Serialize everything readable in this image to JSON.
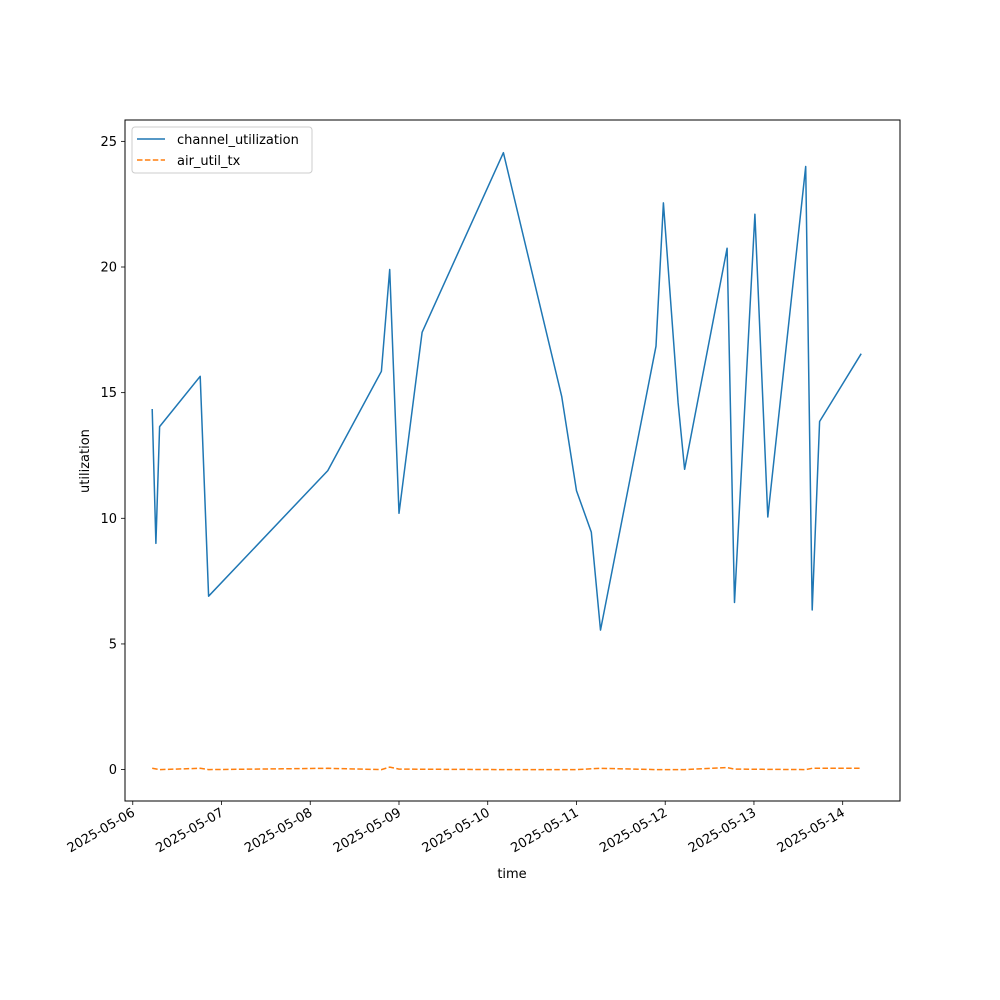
{
  "chart_data": {
    "type": "line",
    "title": "",
    "xlabel": "time",
    "ylabel": "utilization",
    "x_ticks": [
      "2025-05-06",
      "2025-05-07",
      "2025-05-08",
      "2025-05-09",
      "2025-05-10",
      "2025-05-11",
      "2025-05-12",
      "2025-05-13",
      "2025-05-14"
    ],
    "y_ticks": [
      0,
      5,
      10,
      15,
      20,
      25
    ],
    "xlim": [
      "2025-05-05T21:54",
      "2025-05-14T15:30"
    ],
    "ylim": [
      -1.25,
      25.85
    ],
    "grid": false,
    "legend_position": "upper-left",
    "series": [
      {
        "name": "channel_utilization",
        "color": "#1f77b4",
        "dash": "solid",
        "points": [
          {
            "x": "2025-05-06T05:15",
            "y": 14.35
          },
          {
            "x": "2025-05-06T06:15",
            "y": 9.0
          },
          {
            "x": "2025-05-06T07:15",
            "y": 13.65
          },
          {
            "x": "2025-05-06T18:15",
            "y": 15.65
          },
          {
            "x": "2025-05-06T20:30",
            "y": 6.9
          },
          {
            "x": "2025-05-08T04:45",
            "y": 11.9
          },
          {
            "x": "2025-05-08T19:15",
            "y": 15.85
          },
          {
            "x": "2025-05-08T21:30",
            "y": 19.9
          },
          {
            "x": "2025-05-09T00:00",
            "y": 10.2
          },
          {
            "x": "2025-05-09T06:15",
            "y": 17.4
          },
          {
            "x": "2025-05-10T04:15",
            "y": 24.55
          },
          {
            "x": "2025-05-10T20:00",
            "y": 14.85
          },
          {
            "x": "2025-05-11T00:00",
            "y": 11.1
          },
          {
            "x": "2025-05-11T04:00",
            "y": 9.45
          },
          {
            "x": "2025-05-11T06:30",
            "y": 5.55
          },
          {
            "x": "2025-05-11T21:30",
            "y": 16.85
          },
          {
            "x": "2025-05-11T23:30",
            "y": 22.55
          },
          {
            "x": "2025-05-12T03:30",
            "y": 14.6
          },
          {
            "x": "2025-05-12T05:15",
            "y": 11.95
          },
          {
            "x": "2025-05-12T16:45",
            "y": 20.75
          },
          {
            "x": "2025-05-12T18:45",
            "y": 6.65
          },
          {
            "x": "2025-05-13T00:15",
            "y": 22.1
          },
          {
            "x": "2025-05-13T03:45",
            "y": 10.05
          },
          {
            "x": "2025-05-13T14:00",
            "y": 24.0
          },
          {
            "x": "2025-05-13T15:45",
            "y": 6.35
          },
          {
            "x": "2025-05-13T17:45",
            "y": 13.85
          },
          {
            "x": "2025-05-14T05:00",
            "y": 16.55
          }
        ]
      },
      {
        "name": "air_util_tx",
        "color": "#ff7f0e",
        "dash": "dashed",
        "points": [
          {
            "x": "2025-05-06T05:15",
            "y": 0.05
          },
          {
            "x": "2025-05-06T07:15",
            "y": 0.0
          },
          {
            "x": "2025-05-06T18:15",
            "y": 0.05
          },
          {
            "x": "2025-05-06T20:30",
            "y": 0.0
          },
          {
            "x": "2025-05-08T04:45",
            "y": 0.05
          },
          {
            "x": "2025-05-08T19:15",
            "y": 0.0
          },
          {
            "x": "2025-05-08T21:30",
            "y": 0.1
          },
          {
            "x": "2025-05-09T00:00",
            "y": 0.02
          },
          {
            "x": "2025-05-10T04:15",
            "y": 0.0
          },
          {
            "x": "2025-05-11T00:00",
            "y": 0.0
          },
          {
            "x": "2025-05-11T06:30",
            "y": 0.05
          },
          {
            "x": "2025-05-11T21:30",
            "y": 0.0
          },
          {
            "x": "2025-05-12T05:15",
            "y": 0.0
          },
          {
            "x": "2025-05-12T16:45",
            "y": 0.08
          },
          {
            "x": "2025-05-12T18:45",
            "y": 0.02
          },
          {
            "x": "2025-05-13T14:00",
            "y": 0.0
          },
          {
            "x": "2025-05-13T15:45",
            "y": 0.05
          },
          {
            "x": "2025-05-14T05:00",
            "y": 0.05
          }
        ]
      }
    ]
  }
}
